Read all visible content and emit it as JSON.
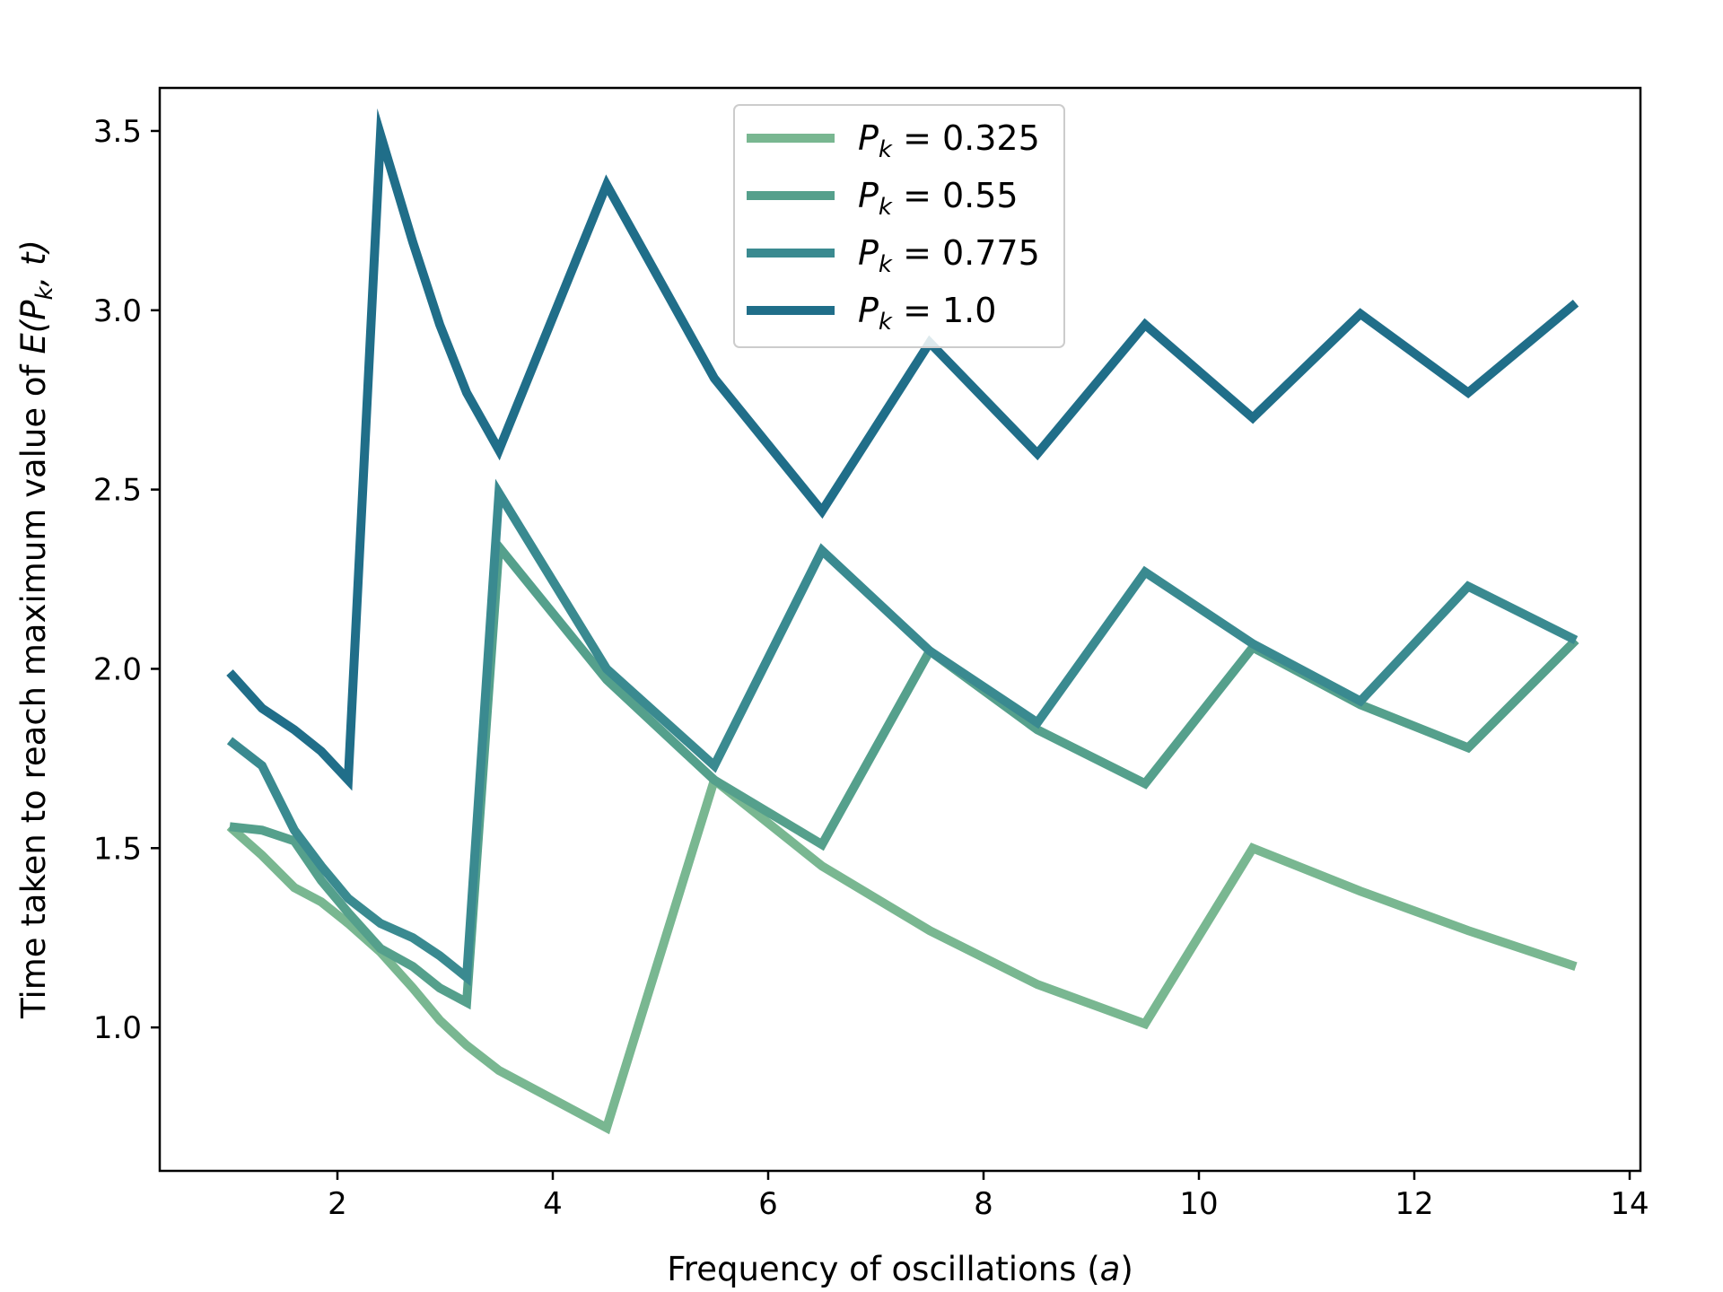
{
  "chart_data": {
    "type": "line",
    "xlabel_prefix": "Frequency of oscillations (",
    "xlabel_var": "a",
    "xlabel_suffix": ")",
    "ylabel_prefix": "Time taken to reach maximum value of ",
    "ylabel_math": "E(P",
    "ylabel_sub": "k",
    "ylabel_math_end": ", t)",
    "xlim": [
      0.35,
      14.1
    ],
    "ylim": [
      0.6,
      3.62
    ],
    "xticks": [
      2,
      4,
      6,
      8,
      10,
      12,
      14
    ],
    "xtick_labels": [
      "2",
      "4",
      "6",
      "8",
      "10",
      "12",
      "14"
    ],
    "yticks": [
      1.0,
      1.5,
      2.0,
      2.5,
      3.0,
      3.5
    ],
    "ytick_labels": [
      "1.0",
      "1.5",
      "2.0",
      "2.5",
      "3.0",
      "3.5"
    ],
    "grid": false,
    "legend_position": "top-center",
    "x": [
      1.0,
      1.3,
      1.6,
      1.85,
      2.1,
      2.4,
      2.7,
      2.95,
      3.2,
      3.5,
      4.5,
      5.5,
      6.5,
      7.5,
      8.5,
      9.5,
      10.5,
      11.5,
      12.5,
      13.5
    ],
    "series": [
      {
        "name_var": "P",
        "name_sub": "k",
        "name_value": " = 0.325",
        "color": "#79b791",
        "values": [
          1.56,
          1.48,
          1.39,
          1.35,
          1.29,
          1.21,
          1.11,
          1.02,
          0.95,
          0.88,
          0.72,
          1.69,
          1.45,
          1.27,
          1.12,
          1.01,
          1.5,
          1.38,
          1.27,
          1.17
        ]
      },
      {
        "name_var": "P",
        "name_sub": "k",
        "name_value": " = 0.55",
        "color": "#55a08c",
        "values": [
          1.56,
          1.55,
          1.52,
          1.41,
          1.32,
          1.22,
          1.17,
          1.11,
          1.07,
          2.34,
          1.97,
          1.69,
          1.51,
          2.05,
          1.83,
          1.68,
          2.06,
          1.9,
          1.78,
          2.08
        ]
      },
      {
        "name_var": "P",
        "name_sub": "k",
        "name_value": " = 0.775",
        "color": "#3a8a90",
        "values": [
          1.8,
          1.73,
          1.55,
          1.45,
          1.36,
          1.29,
          1.25,
          1.2,
          1.14,
          2.49,
          2.0,
          1.73,
          2.33,
          2.05,
          1.85,
          2.27,
          2.07,
          1.91,
          2.23,
          2.08
        ]
      },
      {
        "name_var": "P",
        "name_sub": "k",
        "name_value": " = 1.0",
        "color": "#206e89",
        "values": [
          1.99,
          1.89,
          1.83,
          1.77,
          1.69,
          3.49,
          3.19,
          2.96,
          2.77,
          2.61,
          3.35,
          2.81,
          2.44,
          2.91,
          2.6,
          2.96,
          2.7,
          2.99,
          2.77,
          3.02
        ]
      }
    ]
  }
}
